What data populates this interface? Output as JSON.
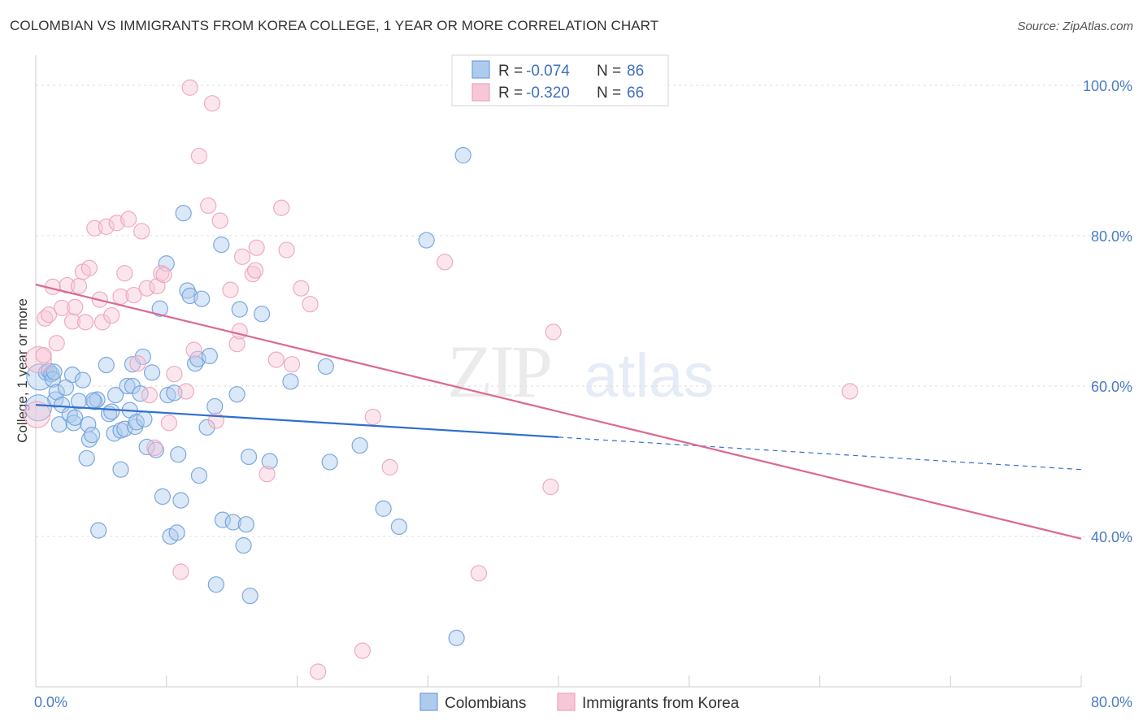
{
  "chart_data": {
    "type": "scatter",
    "title": "COLOMBIAN VS IMMIGRANTS FROM KOREA COLLEGE, 1 YEAR OR MORE CORRELATION CHART",
    "source": "Source: ZipAtlas.com",
    "xlabel": "",
    "ylabel": "College, 1 year or more",
    "xlim": [
      0,
      80
    ],
    "ylim": [
      20,
      104
    ],
    "x_tick_labels": [
      {
        "value": 0,
        "label": "0.0%"
      },
      {
        "value": 80,
        "label": "80.0%"
      }
    ],
    "y_tick_labels": [
      {
        "value": 40,
        "label": "40.0%"
      },
      {
        "value": 60,
        "label": "60.0%"
      },
      {
        "value": 80,
        "label": "80.0%"
      },
      {
        "value": 100,
        "label": "100.0%"
      }
    ],
    "watermark": {
      "zip": "ZIP",
      "atlas": "atlas"
    },
    "legend": {
      "placement": "top-center",
      "entries": [
        {
          "r_label": "R = ",
          "r_value": "-0.074",
          "n_label": "N = ",
          "n_value": "86"
        },
        {
          "r_label": "R = ",
          "r_value": "-0.320",
          "n_label": "N = ",
          "n_value": "66"
        }
      ]
    },
    "series": [
      {
        "name": "Colombians",
        "color": "#6fa0dc",
        "fill": "#aecbee",
        "line_color": "#2f6fcf",
        "trend": {
          "x_start": 0,
          "y_start": 57.5,
          "x_solid_end": 40,
          "y_solid_end": 53.2,
          "x_end": 80,
          "y_end": 48.9
        },
        "points": [
          [
            0.3,
            61.2
          ],
          [
            0.8,
            61.8
          ],
          [
            1.0,
            62.0
          ],
          [
            1.2,
            61.6
          ],
          [
            1.3,
            60.9
          ],
          [
            1.5,
            58.2
          ],
          [
            1.6,
            59.2
          ],
          [
            1.8,
            54.9
          ],
          [
            2.0,
            57.5
          ],
          [
            2.3,
            59.8
          ],
          [
            2.6,
            56.2
          ],
          [
            2.8,
            61.5
          ],
          [
            2.9,
            55.1
          ],
          [
            3.0,
            55.8
          ],
          [
            3.3,
            58.0
          ],
          [
            3.6,
            60.8
          ],
          [
            3.9,
            50.4
          ],
          [
            4.0,
            54.9
          ],
          [
            4.1,
            52.9
          ],
          [
            4.3,
            53.5
          ],
          [
            4.5,
            57.9
          ],
          [
            4.7,
            58.2
          ],
          [
            4.8,
            40.8
          ],
          [
            5.4,
            62.8
          ],
          [
            5.6,
            56.3
          ],
          [
            5.8,
            56.6
          ],
          [
            6.0,
            53.7
          ],
          [
            6.1,
            58.8
          ],
          [
            6.5,
            54.1
          ],
          [
            6.5,
            48.9
          ],
          [
            6.8,
            54.3
          ],
          [
            7.0,
            60.0
          ],
          [
            7.2,
            56.8
          ],
          [
            7.4,
            62.9
          ],
          [
            7.4,
            60.0
          ],
          [
            7.6,
            54.6
          ],
          [
            7.7,
            55.2
          ],
          [
            8.0,
            59.0
          ],
          [
            8.2,
            63.9
          ],
          [
            8.3,
            55.6
          ],
          [
            8.5,
            51.9
          ],
          [
            8.9,
            61.8
          ],
          [
            9.2,
            51.5
          ],
          [
            9.5,
            70.3
          ],
          [
            9.7,
            45.3
          ],
          [
            10.0,
            76.3
          ],
          [
            10.1,
            58.8
          ],
          [
            10.3,
            40.0
          ],
          [
            10.6,
            59.1
          ],
          [
            10.8,
            40.5
          ],
          [
            10.9,
            50.9
          ],
          [
            11.1,
            44.8
          ],
          [
            11.3,
            83.0
          ],
          [
            11.6,
            72.7
          ],
          [
            11.8,
            72.0
          ],
          [
            12.2,
            63.0
          ],
          [
            12.4,
            63.6
          ],
          [
            12.5,
            48.1
          ],
          [
            12.7,
            71.6
          ],
          [
            13.1,
            54.5
          ],
          [
            13.3,
            64.0
          ],
          [
            13.7,
            57.3
          ],
          [
            13.8,
            33.6
          ],
          [
            14.2,
            78.8
          ],
          [
            14.3,
            42.2
          ],
          [
            15.1,
            41.9
          ],
          [
            15.4,
            58.9
          ],
          [
            15.6,
            70.2
          ],
          [
            15.9,
            38.8
          ],
          [
            16.1,
            41.6
          ],
          [
            16.3,
            50.6
          ],
          [
            16.4,
            32.1
          ],
          [
            17.3,
            69.6
          ],
          [
            17.9,
            50.0
          ],
          [
            19.5,
            60.6
          ],
          [
            22.2,
            62.6
          ],
          [
            22.5,
            49.9
          ],
          [
            24.8,
            52.1
          ],
          [
            26.6,
            43.7
          ],
          [
            27.8,
            41.3
          ],
          [
            29.9,
            79.4
          ],
          [
            32.2,
            26.5
          ],
          [
            32.7,
            90.7
          ],
          [
            0.2,
            57.1
          ],
          [
            1.4,
            61.9
          ],
          [
            4.4,
            58.1
          ]
        ]
      },
      {
        "name": "Immigrants from Korea",
        "color": "#eba3bd",
        "fill": "#f8c7d7",
        "line_color": "#dc6993",
        "trend": {
          "x_start": 0,
          "y_start": 73.5,
          "x_solid_end": 80,
          "y_solid_end": 39.7,
          "x_end": 80,
          "y_end": 39.7
        },
        "points": [
          [
            0.1,
            56.2
          ],
          [
            0.2,
            63.5
          ],
          [
            0.6,
            64.1
          ],
          [
            0.7,
            69.0
          ],
          [
            1.0,
            69.5
          ],
          [
            1.3,
            73.2
          ],
          [
            1.6,
            65.7
          ],
          [
            2.0,
            70.4
          ],
          [
            2.4,
            73.4
          ],
          [
            2.8,
            68.6
          ],
          [
            3.0,
            70.5
          ],
          [
            3.3,
            73.3
          ],
          [
            3.6,
            75.2
          ],
          [
            3.8,
            68.5
          ],
          [
            4.1,
            75.7
          ],
          [
            4.5,
            81.0
          ],
          [
            4.9,
            71.5
          ],
          [
            5.1,
            68.5
          ],
          [
            5.4,
            81.2
          ],
          [
            5.8,
            69.4
          ],
          [
            6.2,
            81.7
          ],
          [
            6.5,
            71.9
          ],
          [
            6.8,
            75.0
          ],
          [
            7.1,
            82.2
          ],
          [
            7.5,
            72.1
          ],
          [
            7.8,
            63.0
          ],
          [
            8.1,
            80.6
          ],
          [
            8.5,
            73.0
          ],
          [
            8.7,
            58.8
          ],
          [
            9.1,
            51.8
          ],
          [
            9.3,
            73.3
          ],
          [
            9.6,
            75.0
          ],
          [
            9.8,
            74.8
          ],
          [
            10.2,
            55.1
          ],
          [
            10.6,
            61.6
          ],
          [
            11.1,
            35.3
          ],
          [
            11.5,
            59.3
          ],
          [
            11.8,
            99.7
          ],
          [
            12.1,
            64.8
          ],
          [
            12.5,
            90.6
          ],
          [
            13.2,
            84.0
          ],
          [
            13.5,
            97.6
          ],
          [
            13.8,
            55.4
          ],
          [
            14.1,
            82.0
          ],
          [
            14.9,
            72.8
          ],
          [
            15.4,
            65.6
          ],
          [
            15.6,
            67.3
          ],
          [
            15.8,
            77.2
          ],
          [
            16.6,
            74.9
          ],
          [
            16.8,
            75.4
          ],
          [
            16.9,
            78.4
          ],
          [
            17.7,
            48.3
          ],
          [
            18.4,
            63.5
          ],
          [
            18.8,
            83.7
          ],
          [
            19.2,
            78.1
          ],
          [
            19.6,
            62.9
          ],
          [
            20.3,
            73.0
          ],
          [
            21.0,
            70.9
          ],
          [
            21.6,
            22.0
          ],
          [
            25.0,
            24.8
          ],
          [
            25.8,
            55.9
          ],
          [
            27.1,
            49.2
          ],
          [
            31.3,
            76.5
          ],
          [
            33.9,
            35.1
          ],
          [
            39.4,
            46.6
          ],
          [
            39.6,
            67.2
          ]
        ]
      }
    ],
    "extra_korea_point": [
      62.3,
      59.3
    ]
  }
}
